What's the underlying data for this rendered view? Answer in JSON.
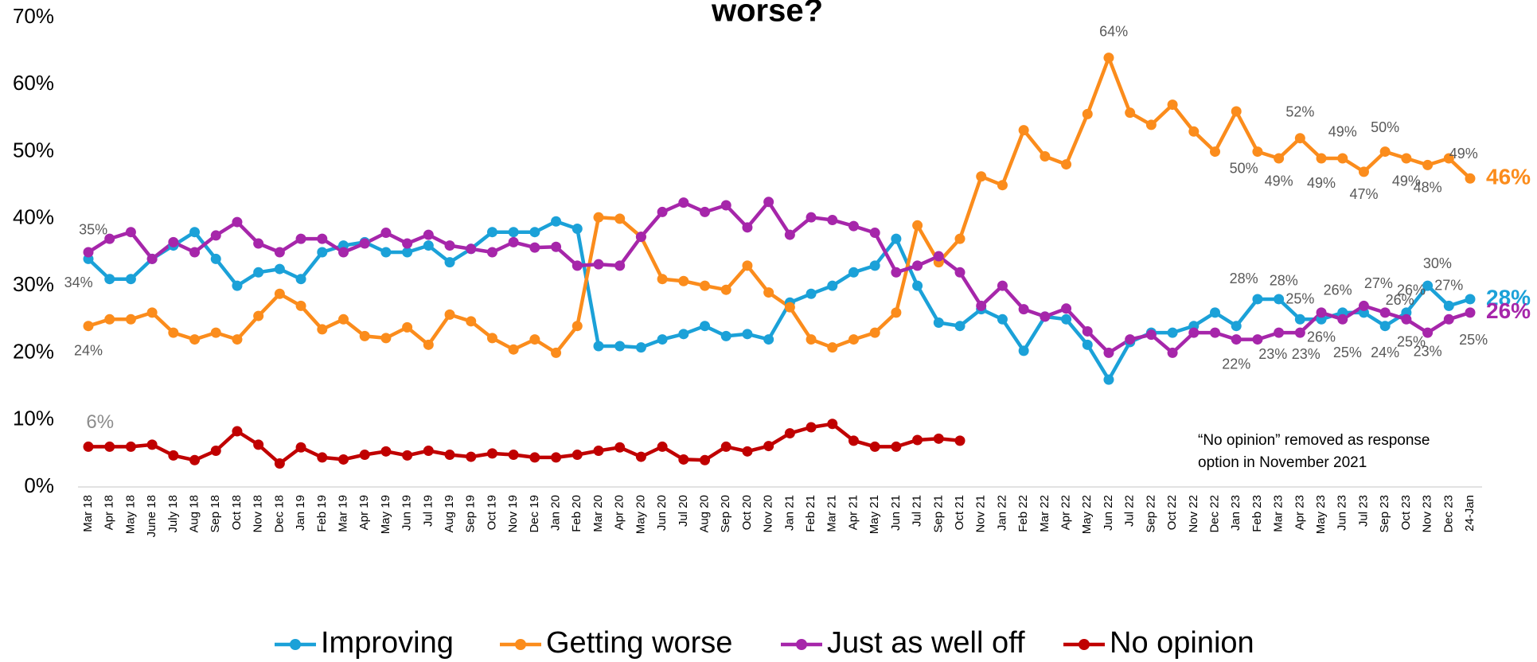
{
  "chart_data": {
    "type": "line",
    "title": "worse?",
    "categories": [
      "Mar 18",
      "Apr 18",
      "May 18",
      "June 18",
      "July 18",
      "Aug 18",
      "Sep 18",
      "Oct 18",
      "Nov 18",
      "Dec 18",
      "Jan 19",
      "Feb 19",
      "Mar 19",
      "Apr 19",
      "May 19",
      "Jun 19",
      "Jul 19",
      "Aug 19",
      "Sep 19",
      "Oct 19",
      "Nov 19",
      "Dec 19",
      "Jan 20",
      "Feb 20",
      "Mar 20",
      "Apr 20",
      "May 20",
      "Jun 20",
      "Jul 20",
      "Aug 20",
      "Sep 20",
      "Oct 20",
      "Nov 20",
      "Jan 21",
      "Feb 21",
      "Mar 21",
      "Apr 21",
      "May 21",
      "Jun 21",
      "Jul 21",
      "Sep 21",
      "Oct 21",
      "Nov 21",
      "Jan 22",
      "Feb 22",
      "Mar 22",
      "Apr 22",
      "May 22",
      "Jun 22",
      "Jul 22",
      "Sep 22",
      "Oct 22",
      "Nov 22",
      "Dec 22",
      "Jan 23",
      "Feb 23",
      "Mar 23",
      "Apr 23",
      "May 23",
      "Jun 23",
      "Jul 23",
      "Sep 23",
      "Oct 23",
      "Nov 23",
      "Dec 23",
      "24-Jan"
    ],
    "series": [
      {
        "name": "Improving",
        "color": "#1ba1d8",
        "values": [
          34,
          31,
          31,
          34,
          36,
          38,
          34,
          30,
          32,
          32.5,
          31,
          35,
          36,
          36.5,
          35,
          35,
          36,
          33.5,
          35.5,
          38,
          38,
          38,
          39.6,
          38.5,
          21,
          21,
          20.8,
          22,
          22.8,
          24,
          22.5,
          22.8,
          22,
          27.5,
          28.8,
          30,
          32,
          33,
          37,
          30,
          24.5,
          24,
          26.5,
          25,
          20.3,
          25.4,
          25,
          21.2,
          16,
          21.6,
          23,
          23,
          24,
          26,
          24,
          28,
          28,
          25,
          25,
          26,
          26,
          24,
          26,
          30,
          27,
          28
        ],
        "value_labels": [
          "34%",
          null,
          null,
          null,
          null,
          null,
          null,
          null,
          null,
          null,
          null,
          null,
          null,
          null,
          null,
          null,
          null,
          null,
          null,
          null,
          null,
          null,
          null,
          null,
          null,
          null,
          null,
          null,
          null,
          null,
          null,
          null,
          null,
          null,
          null,
          null,
          null,
          null,
          null,
          null,
          null,
          null,
          null,
          null,
          null,
          null,
          null,
          null,
          null,
          null,
          null,
          null,
          null,
          null,
          null,
          "28%",
          "28%",
          "25%",
          null,
          "26%",
          null,
          "24%",
          "26%",
          "30%",
          "27%",
          "28%"
        ]
      },
      {
        "name": "Getting worse",
        "color": "#fb8c1c",
        "values": [
          24,
          25,
          25,
          26,
          23,
          22,
          23,
          22,
          25.5,
          28.8,
          27,
          23.5,
          25,
          22.5,
          22.2,
          23.8,
          21.2,
          25.7,
          24.7,
          22.2,
          20.5,
          22,
          20,
          24,
          40.2,
          40,
          37.3,
          31,
          30.7,
          30,
          29.4,
          33,
          29,
          26.8,
          22,
          20.8,
          22,
          23,
          26,
          39,
          33.5,
          37,
          46.3,
          45,
          53.2,
          49.3,
          48.1,
          55.6,
          64,
          55.8,
          54,
          57,
          53,
          50,
          56,
          50,
          49,
          52,
          49,
          49,
          47,
          50,
          49,
          48,
          49,
          46
        ],
        "value_labels": [
          "24%",
          null,
          null,
          null,
          null,
          null,
          null,
          null,
          null,
          null,
          null,
          null,
          null,
          null,
          null,
          null,
          null,
          null,
          null,
          null,
          null,
          null,
          null,
          null,
          null,
          null,
          null,
          null,
          null,
          null,
          null,
          null,
          null,
          null,
          null,
          null,
          null,
          null,
          null,
          null,
          null,
          null,
          null,
          null,
          null,
          null,
          null,
          null,
          "64%",
          null,
          null,
          null,
          null,
          null,
          null,
          "50%",
          "49%",
          "52%",
          "49%",
          "49%",
          "47%",
          "50%",
          "49%",
          "48%",
          "49%",
          "46%"
        ]
      },
      {
        "name": "Just as well off",
        "color": "#a626aa",
        "values": [
          35,
          37,
          38,
          34,
          36.5,
          35,
          37.5,
          39.5,
          36.3,
          35,
          37,
          37,
          35,
          36.3,
          37.9,
          36.3,
          37.6,
          36,
          35.5,
          35,
          36.5,
          35.7,
          35.8,
          33,
          33.2,
          33,
          37.3,
          41,
          42.4,
          41,
          42,
          38.7,
          42.5,
          37.6,
          40.2,
          39.8,
          38.9,
          37.9,
          32,
          33,
          34.4,
          32,
          27,
          30,
          26.5,
          25.4,
          26.6,
          23.2,
          20,
          22,
          22.7,
          20,
          23,
          23,
          22,
          22,
          23,
          23,
          26,
          25,
          27,
          26,
          25,
          23,
          25,
          26
        ],
        "value_labels": [
          "35%",
          null,
          null,
          null,
          null,
          null,
          null,
          null,
          null,
          null,
          null,
          null,
          null,
          null,
          null,
          null,
          null,
          null,
          null,
          null,
          null,
          null,
          null,
          null,
          null,
          null,
          null,
          null,
          null,
          null,
          null,
          null,
          null,
          null,
          null,
          null,
          null,
          null,
          null,
          null,
          null,
          null,
          null,
          null,
          null,
          null,
          null,
          null,
          null,
          null,
          null,
          null,
          null,
          null,
          "22%",
          null,
          "23%",
          "23%",
          "26%",
          "25%",
          "27%",
          "26%",
          "25%",
          "23%",
          "25%",
          "26%"
        ]
      },
      {
        "name": "No opinion",
        "color": "#c00000",
        "values": [
          6,
          6,
          6,
          6.3,
          4.7,
          4,
          5.4,
          8.3,
          6.3,
          3.5,
          5.9,
          4.4,
          4.1,
          4.8,
          5.3,
          4.7,
          5.4,
          4.8,
          4.5,
          5,
          4.8,
          4.4,
          4.4,
          4.8,
          5.4,
          5.9,
          4.5,
          6,
          4.1,
          4,
          6,
          5.3,
          6.1,
          8,
          8.9,
          9.4,
          6.9,
          6,
          6,
          7,
          7.2,
          6.9,
          null,
          null,
          null,
          null,
          null,
          null,
          null,
          null,
          null,
          null,
          null,
          null,
          null,
          null,
          null,
          null,
          null,
          null,
          null,
          null,
          null,
          null,
          null,
          null
        ],
        "value_labels": [
          "6%",
          null,
          null,
          null,
          null,
          null,
          null,
          null,
          null,
          null,
          null,
          null,
          null,
          null,
          null,
          null,
          null,
          null,
          null,
          null,
          null,
          null,
          null,
          null,
          null,
          null,
          null,
          null,
          null,
          null,
          null,
          null,
          null,
          null,
          null,
          null,
          null,
          null,
          null,
          null,
          null,
          null,
          null,
          null,
          null,
          null,
          null,
          null,
          null,
          null,
          null,
          null,
          null,
          null,
          null,
          null,
          null,
          null,
          null,
          null,
          null,
          null,
          null,
          null,
          null,
          null
        ]
      }
    ],
    "ylim": [
      0,
      70
    ],
    "yticks": [
      {
        "value": 0,
        "label": "0%"
      },
      {
        "value": 10,
        "label": "10%"
      },
      {
        "value": 20,
        "label": "20%"
      },
      {
        "value": 30,
        "label": "30%"
      },
      {
        "value": 40,
        "label": "40%"
      },
      {
        "value": 50,
        "label": "50%"
      },
      {
        "value": 60,
        "label": "60%"
      },
      {
        "value": 70,
        "label": "70%"
      }
    ],
    "grid": false,
    "legend": "bottom",
    "annotation": [
      "“No opinion” removed as response",
      "option in November 2021"
    ]
  }
}
